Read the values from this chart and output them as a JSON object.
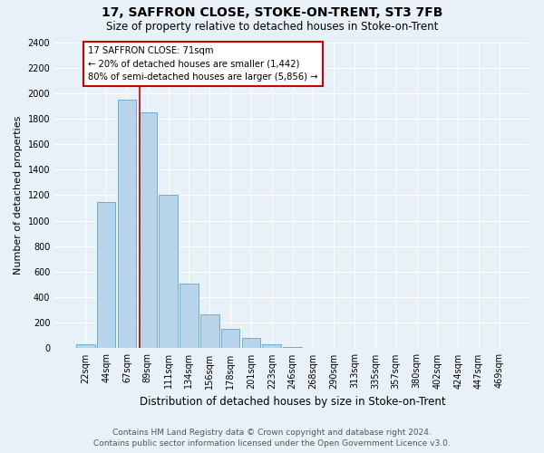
{
  "title": "17, SAFFRON CLOSE, STOKE-ON-TRENT, ST3 7FB",
  "subtitle": "Size of property relative to detached houses in Stoke-on-Trent",
  "xlabel": "Distribution of detached houses by size in Stoke-on-Trent",
  "ylabel": "Number of detached properties",
  "footer_line1": "Contains HM Land Registry data © Crown copyright and database right 2024.",
  "footer_line2": "Contains public sector information licensed under the Open Government Licence v3.0.",
  "bar_labels": [
    "22sqm",
    "44sqm",
    "67sqm",
    "89sqm",
    "111sqm",
    "134sqm",
    "156sqm",
    "178sqm",
    "201sqm",
    "223sqm",
    "246sqm",
    "268sqm",
    "290sqm",
    "313sqm",
    "335sqm",
    "357sqm",
    "380sqm",
    "402sqm",
    "424sqm",
    "447sqm",
    "469sqm"
  ],
  "bar_values": [
    30,
    1150,
    1950,
    1850,
    1200,
    510,
    265,
    150,
    80,
    30,
    10,
    5,
    3,
    2,
    1,
    1,
    0,
    0,
    0,
    0,
    0
  ],
  "bar_color": "#b8d4ea",
  "bar_edge_color": "#6aaed6",
  "background_color": "#e8f0f8",
  "grid_color": "#ffffff",
  "vline_x_index": 2.62,
  "annotation_text_line1": "17 SAFFRON CLOSE: 71sqm",
  "annotation_text_line2": "← 20% of detached houses are smaller (1,442)",
  "annotation_text_line3": "80% of semi-detached houses are larger (5,856) →",
  "annotation_box_color": "#ffffff",
  "annotation_box_edge": "#cc0000",
  "vline_color": "#cc0000",
  "ylim": [
    0,
    2400
  ],
  "yticks": [
    0,
    200,
    400,
    600,
    800,
    1000,
    1200,
    1400,
    1600,
    1800,
    2000,
    2200,
    2400
  ],
  "title_fontsize": 10,
  "subtitle_fontsize": 8.5,
  "ylabel_fontsize": 8,
  "xlabel_fontsize": 8.5,
  "tick_fontsize": 7,
  "footer_fontsize": 6.5
}
